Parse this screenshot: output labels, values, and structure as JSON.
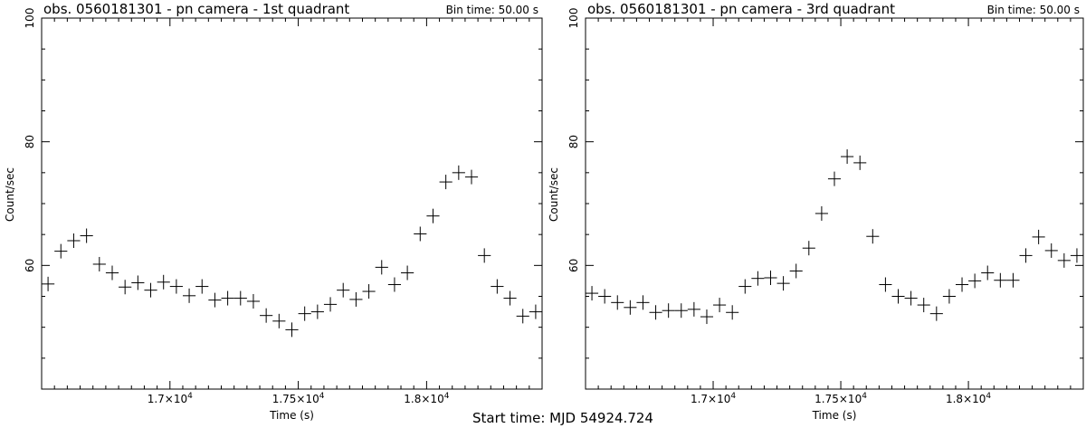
{
  "footer": "Start time: MJD 54924.724",
  "chart_data": [
    {
      "type": "scatter",
      "title": "obs. 0560181301 - pn camera - 1st quadrant",
      "bin_label": "Bin time: 50.00 s",
      "xlabel": "Time (s)",
      "ylabel": "Count/sec",
      "xlim": [
        16500,
        18450
      ],
      "ylim": [
        40,
        100
      ],
      "xticks": [
        {
          "value": 17000,
          "base": "1.7×10",
          "exp": "4"
        },
        {
          "value": 17500,
          "base": "1.75×10",
          "exp": "4"
        },
        {
          "value": 18000,
          "base": "1.8×10",
          "exp": "4"
        }
      ],
      "yticks": [
        60,
        80,
        100
      ],
      "bin_width": 50,
      "x": [
        16525,
        16575,
        16625,
        16675,
        16725,
        16775,
        16825,
        16875,
        16925,
        16975,
        17025,
        17075,
        17125,
        17175,
        17225,
        17275,
        17325,
        17375,
        17425,
        17475,
        17525,
        17575,
        17625,
        17675,
        17725,
        17775,
        17825,
        17875,
        17925,
        17975,
        18025,
        18075,
        18125,
        18175,
        18225,
        18275,
        18325,
        18375,
        18425
      ],
      "y": [
        57.0,
        62.3,
        64.0,
        64.8,
        60.2,
        58.8,
        56.5,
        57.2,
        56.0,
        57.3,
        56.6,
        55.1,
        56.6,
        54.4,
        54.7,
        54.7,
        54.2,
        51.9,
        51.0,
        49.6,
        52.2,
        52.5,
        53.7,
        56.0,
        54.5,
        55.8,
        59.7,
        56.9,
        58.8,
        65.1,
        68.0,
        73.5,
        75.0,
        74.3,
        61.6,
        56.6,
        54.7,
        51.8,
        52.5
      ]
    },
    {
      "type": "scatter",
      "title": "obs. 0560181301 - pn camera - 3rd quadrant",
      "bin_label": "Bin time: 50.00 s",
      "xlabel": "Time (s)",
      "ylabel": "Count/sec",
      "xlim": [
        16500,
        18450
      ],
      "ylim": [
        40,
        100
      ],
      "xticks": [
        {
          "value": 17000,
          "base": "1.7×10",
          "exp": "4"
        },
        {
          "value": 17500,
          "base": "1.75×10",
          "exp": "4"
        },
        {
          "value": 18000,
          "base": "1.8×10",
          "exp": "4"
        }
      ],
      "yticks": [
        60,
        80,
        100
      ],
      "bin_width": 50,
      "x": [
        16525,
        16575,
        16625,
        16675,
        16725,
        16775,
        16825,
        16875,
        16925,
        16975,
        17025,
        17075,
        17125,
        17175,
        17225,
        17275,
        17325,
        17375,
        17425,
        17475,
        17525,
        17575,
        17625,
        17675,
        17725,
        17775,
        17825,
        17875,
        17925,
        17975,
        18025,
        18075,
        18125,
        18175,
        18225,
        18275,
        18325,
        18375,
        18425
      ],
      "y": [
        55.5,
        55.0,
        54.0,
        53.2,
        54.0,
        52.4,
        52.7,
        52.7,
        52.9,
        51.7,
        53.6,
        52.4,
        56.6,
        57.9,
        58.0,
        57.1,
        59.1,
        62.8,
        68.4,
        74.0,
        77.6,
        76.6,
        64.7,
        56.9,
        55.0,
        54.7,
        53.6,
        52.2,
        55.0,
        56.9,
        57.5,
        58.8,
        57.6,
        57.6,
        61.6,
        64.6,
        62.4,
        60.8,
        61.6
      ]
    }
  ]
}
